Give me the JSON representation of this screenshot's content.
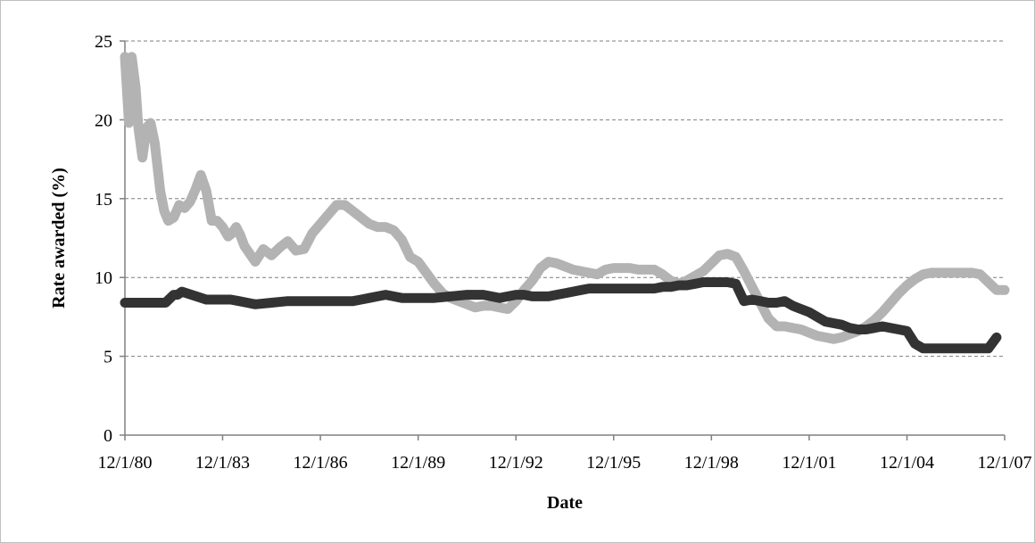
{
  "chart_data": {
    "type": "line",
    "title": "",
    "xlabel": "Date",
    "ylabel": "Rate awarded (%)",
    "xlim": [
      "12/1/80",
      "12/1/07"
    ],
    "ylim": [
      0,
      25
    ],
    "y_ticks": [
      "0",
      "5",
      "10",
      "15",
      "20",
      "25"
    ],
    "x_ticks": [
      "12/1/80",
      "12/1/83",
      "12/1/86",
      "12/1/89",
      "12/1/92",
      "12/1/95",
      "12/1/98",
      "12/1/01",
      "12/1/04",
      "12/1/07"
    ],
    "grid": "horizontal dashed",
    "legend": "none",
    "series": [
      {
        "color": "#b3b3b3",
        "x": [
          "1980-12-01",
          "1981-01-15",
          "1981-02-15",
          "1981-04-01",
          "1981-05-01",
          "1981-06-15",
          "1981-08-01",
          "1981-09-15",
          "1981-11-01",
          "1982-01-01",
          "1982-02-15",
          "1982-04-01",
          "1982-06-01",
          "1982-08-01",
          "1982-10-01",
          "1982-12-01",
          "1983-02-01",
          "1983-04-01",
          "1983-06-01",
          "1983-08-01",
          "1983-10-01",
          "1983-12-01",
          "1984-02-01",
          "1984-03-15",
          "1984-05-01",
          "1984-06-15",
          "1984-08-01",
          "1984-10-01",
          "1984-12-01",
          "1985-03-01",
          "1985-06-01",
          "1985-09-01",
          "1985-12-01",
          "1986-03-01",
          "1986-06-01",
          "1986-09-01",
          "1986-12-01",
          "1987-03-01",
          "1987-06-01",
          "1987-09-01",
          "1987-12-01",
          "1988-03-01",
          "1988-06-01",
          "1988-09-01",
          "1988-12-01",
          "1989-03-01",
          "1989-06-01",
          "1989-09-01",
          "1989-12-01",
          "1990-03-01",
          "1990-06-01",
          "1990-09-01",
          "1990-12-01",
          "1991-03-01",
          "1991-06-01",
          "1991-09-01",
          "1991-12-01",
          "1992-03-01",
          "1992-06-01",
          "1992-09-01",
          "1992-12-01",
          "1993-03-01",
          "1993-06-01",
          "1993-09-01",
          "1993-12-01",
          "1994-03-01",
          "1994-06-01",
          "1994-09-01",
          "1994-12-01",
          "1995-03-01",
          "1995-06-01",
          "1995-09-01",
          "1995-12-01",
          "1996-03-01",
          "1996-06-01",
          "1996-09-01",
          "1996-12-01",
          "1997-03-01",
          "1997-06-01",
          "1997-09-01",
          "1997-12-01",
          "1998-03-01",
          "1998-06-01",
          "1998-09-01",
          "1998-12-01",
          "1999-03-01",
          "1999-06-01",
          "1999-09-01",
          "1999-12-01",
          "2000-03-01",
          "2000-06-01",
          "2000-09-01",
          "2000-12-01",
          "2001-03-01",
          "2001-06-01",
          "2001-09-01",
          "2001-12-01",
          "2002-03-01",
          "2002-06-01",
          "2002-09-01",
          "2002-12-01",
          "2003-03-01",
          "2003-06-01",
          "2003-09-01",
          "2003-12-01",
          "2004-03-01",
          "2004-06-01",
          "2004-09-01",
          "2004-12-01",
          "2005-03-01",
          "2005-06-01",
          "2005-09-01",
          "2005-12-01",
          "2006-03-01",
          "2006-06-01",
          "2006-09-01",
          "2006-12-01",
          "2007-03-01",
          "2007-06-01",
          "2007-09-01",
          "2007-12-01"
        ],
        "values": [
          24.0,
          19.8,
          24.0,
          22.0,
          19.5,
          17.6,
          19.5,
          19.8,
          18.5,
          15.5,
          14.2,
          13.6,
          13.8,
          14.6,
          14.4,
          14.8,
          15.6,
          16.5,
          15.5,
          13.6,
          13.6,
          13.2,
          12.6,
          12.8,
          13.2,
          12.7,
          12.0,
          11.5,
          11.0,
          11.8,
          11.4,
          11.9,
          12.3,
          11.7,
          11.8,
          12.8,
          13.4,
          14.0,
          14.6,
          14.6,
          14.2,
          13.8,
          13.4,
          13.2,
          13.2,
          13.0,
          12.4,
          11.3,
          11.0,
          10.3,
          9.6,
          9.0,
          8.7,
          8.5,
          8.3,
          8.1,
          8.2,
          8.2,
          8.1,
          8.0,
          8.5,
          9.2,
          9.8,
          10.6,
          11.0,
          10.9,
          10.7,
          10.5,
          10.4,
          10.3,
          10.2,
          10.5,
          10.6,
          10.6,
          10.6,
          10.5,
          10.5,
          10.5,
          10.2,
          9.8,
          9.6,
          9.8,
          10.1,
          10.4,
          10.9,
          11.4,
          11.5,
          11.3,
          10.4,
          9.4,
          8.4,
          7.4,
          6.9,
          6.9,
          6.8,
          6.7,
          6.5,
          6.3,
          6.2,
          6.1,
          6.2,
          6.4,
          6.6,
          6.9,
          7.3,
          7.8,
          8.4,
          9.0,
          9.5,
          9.9,
          10.2,
          10.3,
          10.3,
          10.3,
          10.3,
          10.3,
          10.3,
          10.2,
          9.7,
          9.2,
          9.2
        ]
      },
      {
        "color": "#333333",
        "x": [
          "1980-12-01",
          "1981-06-01",
          "1981-12-01",
          "1982-03-01",
          "1982-06-01",
          "1982-07-15",
          "1982-09-01",
          "1983-06-01",
          "1983-12-01",
          "1984-03-01",
          "1984-06-01",
          "1984-09-01",
          "1984-12-01",
          "1985-06-01",
          "1985-12-01",
          "1986-06-01",
          "1986-12-01",
          "1987-06-01",
          "1987-12-01",
          "1988-03-01",
          "1988-06-01",
          "1988-09-01",
          "1988-12-01",
          "1989-03-01",
          "1989-06-01",
          "1989-12-01",
          "1990-06-01",
          "1990-12-01",
          "1991-06-01",
          "1991-12-01",
          "1992-03-01",
          "1992-06-01",
          "1992-09-01",
          "1992-12-01",
          "1993-03-01",
          "1993-06-01",
          "1993-09-01",
          "1993-12-01",
          "1994-03-01",
          "1994-06-01",
          "1994-09-01",
          "1994-12-01",
          "1995-03-01",
          "1995-06-01",
          "1995-12-01",
          "1996-06-01",
          "1996-12-01",
          "1997-03-01",
          "1997-06-01",
          "1997-09-01",
          "1997-12-01",
          "1998-03-01",
          "1998-06-01",
          "1998-09-01",
          "1998-12-01",
          "1999-03-01",
          "1999-06-01",
          "1999-09-01",
          "1999-12-01",
          "2000-03-01",
          "2000-06-01",
          "2000-09-01",
          "2000-12-01",
          "2001-03-01",
          "2001-06-01",
          "2001-09-01",
          "2001-12-01",
          "2002-03-01",
          "2002-06-01",
          "2002-09-01",
          "2002-12-01",
          "2003-03-01",
          "2003-06-01",
          "2003-09-01",
          "2003-12-01",
          "2004-03-01",
          "2004-06-01",
          "2004-09-01",
          "2004-12-01",
          "2005-03-01",
          "2005-06-01",
          "2005-12-01",
          "2006-06-01",
          "2006-12-01",
          "2007-03-01",
          "2007-06-01",
          "2007-09-01"
        ],
        "values": [
          8.4,
          8.4,
          8.4,
          8.4,
          8.9,
          8.9,
          9.1,
          8.6,
          8.6,
          8.6,
          8.5,
          8.4,
          8.3,
          8.4,
          8.5,
          8.5,
          8.5,
          8.5,
          8.5,
          8.6,
          8.7,
          8.8,
          8.9,
          8.8,
          8.7,
          8.7,
          8.7,
          8.8,
          8.9,
          8.9,
          8.8,
          8.7,
          8.8,
          8.9,
          8.9,
          8.8,
          8.8,
          8.8,
          8.9,
          9.0,
          9.1,
          9.2,
          9.3,
          9.3,
          9.3,
          9.3,
          9.3,
          9.3,
          9.4,
          9.4,
          9.5,
          9.5,
          9.6,
          9.7,
          9.7,
          9.7,
          9.7,
          9.6,
          8.5,
          8.6,
          8.5,
          8.4,
          8.4,
          8.5,
          8.2,
          8.0,
          7.8,
          7.5,
          7.2,
          7.1,
          7.0,
          6.8,
          6.7,
          6.7,
          6.8,
          6.9,
          6.8,
          6.7,
          6.6,
          5.8,
          5.5,
          5.5,
          5.5,
          5.5,
          5.5,
          5.5,
          6.2
        ]
      }
    ]
  }
}
